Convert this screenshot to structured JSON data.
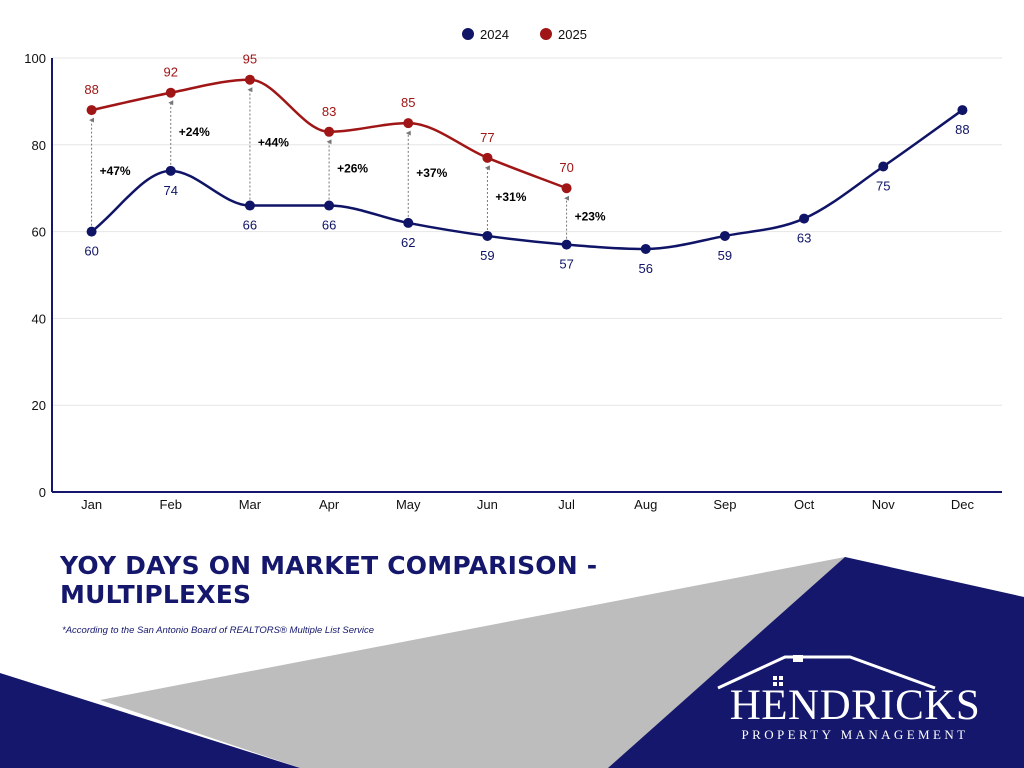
{
  "colors": {
    "series_2024": "#0f1466",
    "series_2025": "#a01515",
    "navy": "#14176b",
    "grey_band": "#bdbdbd",
    "axis": "#14176b",
    "grid": "#e6e6e6"
  },
  "title": "YOY DAYS ON MARKET COMPARISON - MULTIPLEXES",
  "source_note": "*According to the San Antonio Board of REALTORS® Multiple List Service",
  "logo": {
    "name": "HENDRICKS",
    "tagline": "PROPERTY MANAGEMENT"
  },
  "chart_data": {
    "type": "line",
    "title": "",
    "xlabel": "",
    "ylabel": "",
    "categories": [
      "Jan",
      "Feb",
      "Mar",
      "Apr",
      "May",
      "Jun",
      "Jul",
      "Aug",
      "Sep",
      "Oct",
      "Nov",
      "Dec"
    ],
    "ylim": [
      0,
      100
    ],
    "yticks": [
      0,
      20,
      40,
      60,
      80,
      100
    ],
    "grid": true,
    "smooth": true,
    "legend_position": "top-center",
    "series": [
      {
        "name": "2024",
        "color": "#0f1466",
        "values": [
          60,
          74,
          66,
          66,
          62,
          59,
          57,
          56,
          59,
          63,
          75,
          88
        ]
      },
      {
        "name": "2025",
        "color": "#a01515",
        "values": [
          88,
          92,
          95,
          83,
          85,
          77,
          70,
          null,
          null,
          null,
          null,
          null
        ]
      }
    ],
    "annotations": [
      "+47%",
      "+24%",
      "+44%",
      "+26%",
      "+37%",
      "+31%",
      "+23%"
    ]
  }
}
